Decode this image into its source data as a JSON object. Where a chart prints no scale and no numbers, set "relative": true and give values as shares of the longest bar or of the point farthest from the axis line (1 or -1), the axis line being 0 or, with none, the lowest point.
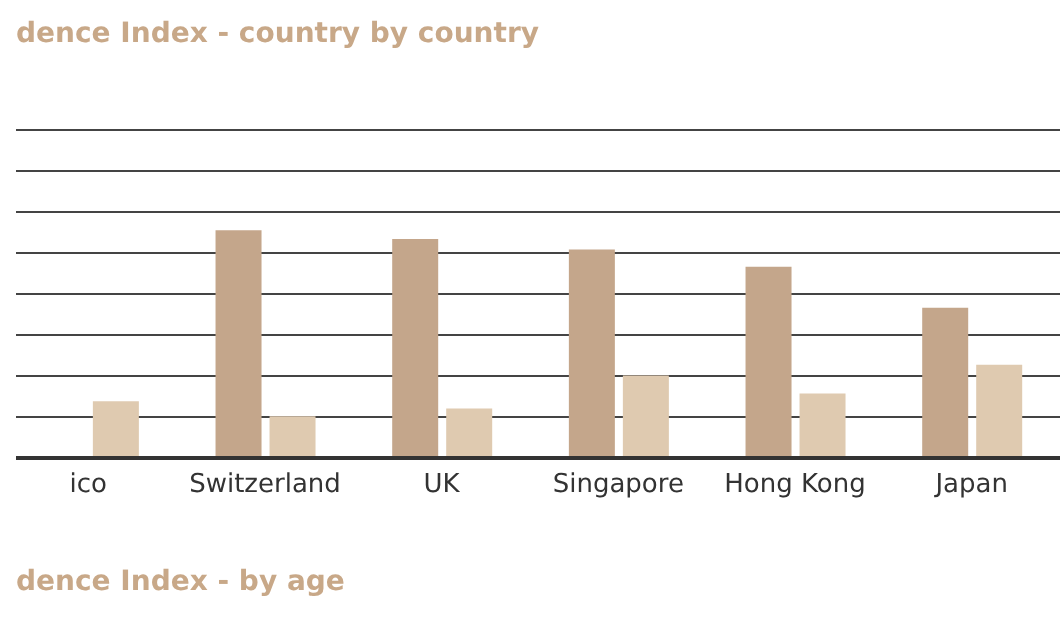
{
  "chart_data": {
    "type": "bar",
    "title": "dence Index - country by country",
    "relative": true,
    "grid": "y",
    "categories": [
      "ico",
      "Switzerland",
      "UK",
      "Singapore",
      "Hong Kong",
      "Japan"
    ],
    "series": [
      {
        "color": "#c4a68b",
        "values": [
          null,
          1,
          0.962,
          0.915,
          0.84,
          0.66
        ]
      },
      {
        "color": "#dfcab0",
        "values": [
          0.249,
          0.183,
          0.217,
          0.362,
          0.283,
          0.409
        ]
      }
    ],
    "annotations": [
      "dence Index - by age"
    ]
  }
}
